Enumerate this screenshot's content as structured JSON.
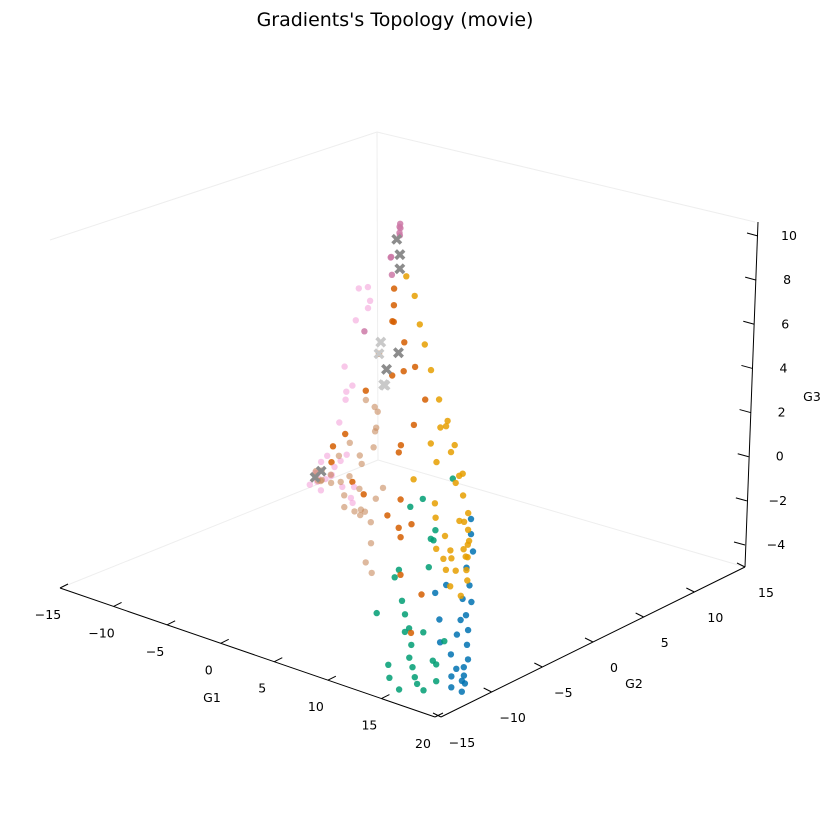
{
  "chart_data": {
    "type": "scatter",
    "title": "Gradients's Topology (movie)",
    "xlabel": "G1",
    "ylabel": "G2",
    "zlabel": "G3",
    "xlim": [
      -15,
      20
    ],
    "ylim": [
      -15,
      15
    ],
    "zlim": [
      -4,
      10
    ],
    "xticks": [
      "−15",
      "−10",
      "−5",
      "0",
      "5",
      "10",
      "15",
      "20"
    ],
    "yticks": [
      "−15",
      "−10",
      "−5",
      "0",
      "5",
      "10",
      "15"
    ],
    "zticks": [
      "−4",
      "−2",
      "0",
      "2",
      "4",
      "6",
      "8",
      "10"
    ],
    "grid": false,
    "series": [
      {
        "color": "#0072b2",
        "points": [
          [
            14.2,
            -5.8,
            1.3
          ],
          [
            14.8,
            -6.4,
            0.9
          ],
          [
            15.5,
            -6.9,
            0.4
          ],
          [
            15.6,
            -7.6,
            -0.1
          ],
          [
            16.4,
            -8.1,
            -0.6
          ],
          [
            17.0,
            -8.5,
            -1.1
          ],
          [
            17.1,
            -9.1,
            -1.5
          ],
          [
            17.8,
            -9.6,
            -1.9
          ],
          [
            18.3,
            -10.2,
            -2.3
          ],
          [
            18.9,
            -10.7,
            -2.7
          ],
          [
            19.0,
            -11.2,
            -2.9
          ],
          [
            19.4,
            -11.6,
            -3.1
          ],
          [
            18.5,
            -11.4,
            -3.0
          ],
          [
            19.6,
            -12.0,
            -3.2
          ],
          [
            19.8,
            -11.9,
            -3.3
          ],
          [
            18.8,
            -12.2,
            -3.1
          ],
          [
            19.2,
            -12.6,
            -3.4
          ],
          [
            20.0,
            -12.4,
            -3.5
          ],
          [
            16.0,
            -10.4,
            -2.5
          ],
          [
            17.4,
            -10.8,
            -2.7
          ],
          [
            15.3,
            -9.8,
            -1.8
          ],
          [
            16.8,
            -9.3,
            -1.7
          ],
          [
            14.8,
            -8.7,
            -0.7
          ],
          [
            15.9,
            -8.2,
            -1.2
          ],
          [
            16.6,
            -9.4,
            -2.3
          ],
          [
            14.0,
            -8.9,
            -1.1
          ]
        ]
      },
      {
        "color": "#009e73",
        "points": [
          [
            11.0,
            -6.0,
            0.0
          ],
          [
            11.6,
            -6.5,
            0.6
          ],
          [
            10.3,
            -9.0,
            -1.0
          ],
          [
            12.4,
            -7.9,
            -0.5
          ],
          [
            12.3,
            -10.0,
            -2.0
          ],
          [
            12.9,
            -10.6,
            -2.5
          ],
          [
            13.9,
            -11.0,
            -2.8
          ],
          [
            14.4,
            -11.7,
            -3.1
          ],
          [
            15.1,
            -12.1,
            -3.3
          ],
          [
            15.8,
            -12.6,
            -3.5
          ],
          [
            16.4,
            -13.0,
            -3.6
          ],
          [
            17.2,
            -13.2,
            -3.7
          ],
          [
            17.7,
            -12.5,
            -3.4
          ],
          [
            13.5,
            -12.8,
            -3.3
          ],
          [
            14.2,
            -13.4,
            -3.6
          ],
          [
            15.5,
            -13.8,
            -3.8
          ],
          [
            16.3,
            -11.4,
            -3.0
          ],
          [
            11.7,
            -9.7,
            -1.6
          ],
          [
            10.6,
            -11.0,
            -2.0
          ],
          [
            13.0,
            -10.3,
            -2.4
          ],
          [
            8.0,
            -3.0,
            -1.0
          ],
          [
            7.0,
            -5.0,
            -2.0
          ],
          [
            6.0,
            -3.0,
            0.0
          ],
          [
            8.5,
            -4.5,
            1.0
          ],
          [
            12.2,
            -5.6,
            2.6
          ],
          [
            16.1,
            -10.1,
            -2.5
          ],
          [
            14.5,
            -10.5,
            -2.3
          ],
          [
            16.9,
            -11.7,
            -3.0
          ]
        ]
      },
      {
        "color": "#e69f00",
        "points": [
          [
            3.0,
            -1.0,
            8.5
          ],
          [
            4.3,
            -1.5,
            8.0
          ],
          [
            5.6,
            -2.3,
            7.2
          ],
          [
            6.5,
            -2.7,
            6.6
          ],
          [
            7.8,
            -3.4,
            5.9
          ],
          [
            9.1,
            -3.9,
            5.0
          ],
          [
            10.3,
            -4.4,
            4.2
          ],
          [
            11.3,
            -4.9,
            3.4
          ],
          [
            12.5,
            -5.3,
            2.7
          ],
          [
            13.3,
            -5.7,
            2.1
          ],
          [
            14.2,
            -6.1,
            1.6
          ],
          [
            14.7,
            -6.6,
            1.1
          ],
          [
            15.0,
            -6.9,
            0.6
          ],
          [
            15.3,
            -7.2,
            0.2
          ],
          [
            15.6,
            -7.6,
            -0.2
          ],
          [
            16.0,
            -7.9,
            -0.5
          ],
          [
            13.0,
            -5.5,
            2.9
          ],
          [
            14.4,
            -6.7,
            1.4
          ],
          [
            11.8,
            -5.1,
            3.8
          ],
          [
            10.6,
            -4.6,
            4.5
          ],
          [
            15.4,
            -7.5,
            0.3
          ],
          [
            15.2,
            -7.0,
            0.8
          ],
          [
            9.5,
            -5.0,
            3.5
          ],
          [
            11.0,
            -6.0,
            1.5
          ],
          [
            12.5,
            -6.5,
            0.5
          ],
          [
            8.5,
            -5.5,
            2.0
          ],
          [
            14.0,
            -7.4,
            0.0
          ],
          [
            14.8,
            -7.8,
            -0.3
          ],
          [
            13.6,
            -7.1,
            0.2
          ],
          [
            12.8,
            -6.9,
            -0.3
          ],
          [
            14.9,
            -8.4,
            -0.8
          ],
          [
            10.0,
            -4.9,
            2.8
          ],
          [
            15.0,
            -7.3,
            0.5
          ],
          [
            13.5,
            -6.2,
            1.2
          ],
          [
            11.3,
            -6.2,
            1.0
          ],
          [
            9.6,
            -4.2,
            4.0
          ],
          [
            12.3,
            -5.4,
            2.4
          ],
          [
            16.0,
            -8.5,
            -1.0
          ],
          [
            13.9,
            -7.8,
            -0.4
          ],
          [
            12.1,
            -6.9,
            0.0
          ]
        ]
      },
      {
        "color": "#d55e00",
        "points": [
          [
            1.0,
            0.0,
            7.5
          ],
          [
            1.5,
            -0.5,
            7.0
          ],
          [
            0.5,
            0.5,
            6.0
          ],
          [
            2.0,
            -1.0,
            6.5
          ],
          [
            3.5,
            -1.5,
            6.0
          ],
          [
            4.0,
            -2.0,
            5.0
          ],
          [
            5.5,
            -2.5,
            5.5
          ],
          [
            7.0,
            -3.0,
            4.5
          ],
          [
            6.5,
            -3.5,
            3.5
          ],
          [
            -2.0,
            2.0,
            4.0
          ],
          [
            -4.0,
            3.0,
            2.0
          ],
          [
            -3.0,
            0.0,
            1.0
          ],
          [
            -5.0,
            1.0,
            0.0
          ],
          [
            2.0,
            0.0,
            1.0
          ],
          [
            4.0,
            -2.0,
            2.0
          ],
          [
            8.0,
            -5.0,
            0.0
          ],
          [
            11.0,
            -7.0,
            -2.0
          ],
          [
            -6.0,
            2.0,
            -1.0
          ],
          [
            -4.0,
            2.0,
            -1.5
          ],
          [
            -2.0,
            1.0,
            -1.5
          ],
          [
            3.0,
            -2.0,
            -1.0
          ],
          [
            5.0,
            -3.0,
            -1.0
          ],
          [
            6.0,
            -4.0,
            0.5
          ],
          [
            9.0,
            -7.0,
            -1.5
          ],
          [
            2.5,
            -1.5,
            4.5
          ],
          [
            12.0,
            -9.0,
            -3.0
          ],
          [
            7.5,
            -5.5,
            -0.5
          ]
        ]
      },
      {
        "color": "#cc79a7",
        "points": [
          [
            -0.5,
            2.0,
            9.5
          ],
          [
            0.0,
            1.5,
            9.5
          ],
          [
            -1.0,
            2.5,
            9.2
          ],
          [
            0.2,
            1.2,
            9.4
          ],
          [
            -0.3,
            1.8,
            9.1
          ],
          [
            -4.0,
            5.0,
            7.0
          ],
          [
            -3.5,
            4.5,
            7.2
          ],
          [
            -2.0,
            3.0,
            7.0
          ],
          [
            -8.0,
            7.0,
            3.0
          ]
        ]
      },
      {
        "color": "#f4a3da",
        "alpha": 0.6,
        "points": [
          [
            -3.0,
            2.0,
            6.0
          ],
          [
            -5.0,
            4.0,
            5.0
          ],
          [
            -5.0,
            3.0,
            6.0
          ],
          [
            -6.0,
            5.0,
            5.5
          ],
          [
            -7.0,
            5.0,
            4.0
          ],
          [
            -6.5,
            3.5,
            2.5
          ],
          [
            -8.0,
            6.0,
            1.0
          ],
          [
            -9.0,
            6.5,
            0.5
          ],
          [
            -9.5,
            7.0,
            0.0
          ],
          [
            -10.0,
            7.0,
            -1.0
          ],
          [
            -11.0,
            7.0,
            -2.5
          ],
          [
            -12.0,
            7.5,
            -3.0
          ],
          [
            -12.5,
            7.5,
            -3.5
          ],
          [
            -12.0,
            8.0,
            -3.8
          ],
          [
            -11.5,
            8.0,
            -3.6
          ],
          [
            -12.5,
            7.0,
            -3.9
          ],
          [
            -11.0,
            6.5,
            -3.8
          ],
          [
            -10.5,
            7.0,
            -3.2
          ],
          [
            -11.0,
            6.0,
            -3.0
          ],
          [
            -7.0,
            4.0,
            -1.5
          ],
          [
            -6.0,
            3.5,
            -1.0
          ],
          [
            -8.0,
            4.5,
            -2.0
          ],
          [
            -4.0,
            1.0,
            -1.5
          ],
          [
            -2.0,
            0.0,
            -1.0
          ],
          [
            -3.0,
            1.0,
            -2.0
          ],
          [
            -5.0,
            3.0,
            -2.5
          ],
          [
            -9.0,
            4.0,
            -2.5
          ],
          [
            -10.0,
            5.0,
            -3.0
          ]
        ]
      },
      {
        "color": "#c88a5e",
        "alpha": 0.6,
        "points": [
          [
            -12.0,
            7.0,
            -3.5
          ],
          [
            -11.5,
            7.0,
            -3.6
          ],
          [
            -11.0,
            7.5,
            -3.7
          ],
          [
            -12.5,
            7.8,
            -3.9
          ],
          [
            -11.8,
            6.8,
            -3.2
          ],
          [
            -11.0,
            6.5,
            -3.0
          ],
          [
            -10.5,
            6.0,
            -3.2
          ],
          [
            -9.5,
            5.8,
            -2.8
          ],
          [
            -9.0,
            6.0,
            -2.0
          ],
          [
            -8.5,
            6.5,
            -1.5
          ],
          [
            -7.5,
            5.5,
            -2.5
          ],
          [
            -7.0,
            4.5,
            -3.0
          ],
          [
            -6.5,
            4.0,
            -3.3
          ],
          [
            -6.0,
            4.5,
            -3.5
          ],
          [
            -5.0,
            4.0,
            -3.4
          ],
          [
            -4.5,
            3.5,
            -3.0
          ],
          [
            -6.0,
            3.0,
            -2.0
          ],
          [
            -5.5,
            4.5,
            -1.5
          ],
          [
            -4.0,
            4.0,
            -0.5
          ],
          [
            -3.0,
            3.0,
            0.5
          ],
          [
            -2.0,
            2.0,
            1.0
          ],
          [
            -1.0,
            1.0,
            2.0
          ],
          [
            -3.5,
            2.5,
            1.8
          ],
          [
            -2.5,
            1.0,
            0.0
          ],
          [
            -1.5,
            0.0,
            -1.0
          ],
          [
            0.5,
            -0.5,
            -1.0
          ],
          [
            0.0,
            -1.0,
            -1.5
          ],
          [
            1.5,
            -2.0,
            -1.5
          ],
          [
            2.5,
            -3.0,
            -2.0
          ],
          [
            3.0,
            -4.0,
            -2.5
          ],
          [
            4.5,
            -5.0,
            -2.5
          ],
          [
            -3.0,
            4.0,
            -2.0
          ],
          [
            1.0,
            -1.5,
            3.0
          ]
        ]
      },
      {
        "color": "#8c8c8c",
        "marker": "x",
        "points": [
          [
            -0.3,
            1.5,
            9.0
          ],
          [
            0.5,
            1.0,
            8.6
          ],
          [
            1.0,
            0.5,
            8.2
          ],
          [
            3.0,
            -1.5,
            5.5
          ],
          [
            1.5,
            -1.0,
            4.5
          ],
          [
            -11.5,
            7.0,
            -3.2
          ],
          [
            -12.5,
            7.5,
            -3.7
          ]
        ]
      },
      {
        "color": "#c9c9c9",
        "marker": "x",
        "points": [
          [
            -2.0,
            2.0,
            4.0
          ],
          [
            -1.0,
            1.5,
            3.0
          ],
          [
            0.5,
            0.0,
            3.5
          ],
          [
            -0.5,
            0.5,
            5.0
          ]
        ]
      }
    ]
  }
}
